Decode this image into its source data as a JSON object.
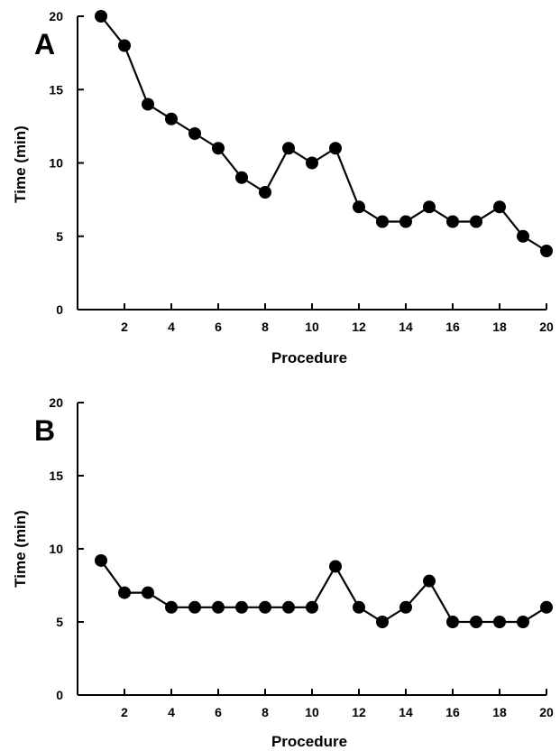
{
  "chart_data": [
    {
      "type": "line",
      "panel_label": "A",
      "xlabel": "Procedure",
      "ylabel": "Time (min)",
      "xlim": [
        0,
        20
      ],
      "ylim": [
        0,
        20
      ],
      "xticks": [
        2,
        4,
        6,
        8,
        10,
        12,
        14,
        16,
        18,
        20
      ],
      "yticks": [
        0,
        5,
        10,
        15,
        20
      ],
      "grid": false,
      "series": [
        {
          "x": [
            1,
            2,
            3,
            4,
            5,
            6,
            7,
            8,
            9,
            10,
            11,
            12,
            13,
            14,
            15,
            16,
            17,
            18,
            19,
            20
          ],
          "values": [
            20,
            18,
            14,
            13,
            12,
            11,
            9,
            8,
            11,
            10,
            11,
            7,
            6,
            6,
            7,
            6,
            6,
            7,
            5,
            4
          ]
        }
      ]
    },
    {
      "type": "line",
      "panel_label": "B",
      "xlabel": "Procedure",
      "ylabel": "Time (min)",
      "xlim": [
        0,
        20
      ],
      "ylim": [
        0,
        20
      ],
      "xticks": [
        2,
        4,
        6,
        8,
        10,
        12,
        14,
        16,
        18,
        20
      ],
      "yticks": [
        0,
        5,
        10,
        15,
        20
      ],
      "grid": false,
      "series": [
        {
          "x": [
            1,
            2,
            3,
            4,
            5,
            6,
            7,
            8,
            9,
            10,
            11,
            12,
            13,
            14,
            15,
            16,
            17,
            18,
            19,
            20
          ],
          "values": [
            9.2,
            7,
            7,
            6,
            6,
            6,
            6,
            6,
            6,
            6,
            8.8,
            6,
            5,
            6,
            7.8,
            5,
            5,
            5,
            5,
            6
          ]
        }
      ]
    }
  ]
}
